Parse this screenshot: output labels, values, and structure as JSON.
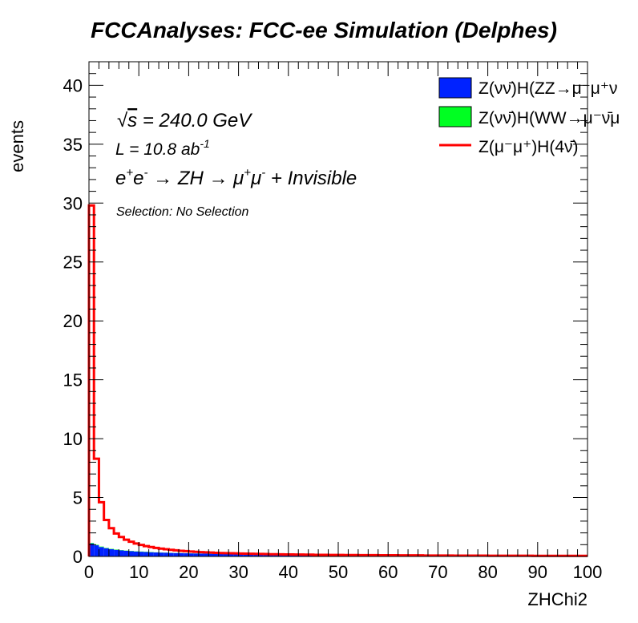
{
  "title": "FCCAnalyses: FCC-ee Simulation (Delphes)",
  "annotations": {
    "energy": {
      "sqrt": "√",
      "s": "s",
      "rest": " = 240.0 GeV"
    },
    "lumi": {
      "main": "L = 10.8 ab",
      "sup": "-1"
    },
    "process": {
      "e": "e",
      "ep": "+",
      "e2": "e",
      "em": "-",
      "arrow1": " → ZH → μ",
      "mup": "+",
      "mu2": "μ",
      "mum": "-",
      "rest": " + Invisible"
    },
    "selection": "Selection: No Selection"
  },
  "chart_data": {
    "type": "histogram",
    "title": "FCCAnalyses: FCC-ee Simulation (Delphes)",
    "xlabel": "ZHChi2",
    "ylabel": "events",
    "xlim": [
      0,
      100
    ],
    "ylim": [
      0,
      42
    ],
    "bin_width": 1,
    "xticks": [
      "0",
      "10",
      "20",
      "30",
      "40",
      "50",
      "60",
      "70",
      "80",
      "90",
      "100"
    ],
    "yticks": [
      "0",
      "5",
      "10",
      "15",
      "20",
      "25",
      "30",
      "35",
      "40"
    ],
    "legend": {
      "position": "top-right",
      "entries": [
        {
          "label": "Z(νν̄)H(ZZ→μ⁻μ⁺ν",
          "style": "fill",
          "color": "#0022ff"
        },
        {
          "label": "Z(νν̄)H(WW→μ⁻ν̄μ",
          "style": "fill",
          "color": "#00ff22"
        },
        {
          "label": "Z(μ⁻μ⁺)H(4ν̄)",
          "style": "line",
          "color": "#ff0000"
        }
      ]
    },
    "series": [
      {
        "name": "Z(νν̄)H(ZZ→μ⁻μ⁺ν",
        "style": "stacked-fill",
        "color": "#0022ff",
        "values": [
          1.1,
          0.95,
          0.8,
          0.7,
          0.62,
          0.56,
          0.52,
          0.48,
          0.45,
          0.42,
          0.4,
          0.38,
          0.36,
          0.34,
          0.33,
          0.32,
          0.3,
          0.29,
          0.28,
          0.27,
          0.26,
          0.25,
          0.24,
          0.24,
          0.23,
          0.22,
          0.22,
          0.21,
          0.21,
          0.2,
          0.2,
          0.19,
          0.19,
          0.18,
          0.18,
          0.17,
          0.17,
          0.16,
          0.16,
          0.16,
          0.15,
          0.15,
          0.15,
          0.15,
          0.14,
          0.14,
          0.14,
          0.14,
          0.13,
          0.13,
          0.13,
          0.13,
          0.13,
          0.12,
          0.12,
          0.12,
          0.12,
          0.12,
          0.12,
          0.11,
          0.11,
          0.11,
          0.11,
          0.11,
          0.11,
          0.1,
          0.1,
          0.1,
          0.1,
          0.1,
          0.1,
          0.1,
          0.1,
          0.09,
          0.09,
          0.09,
          0.09,
          0.09,
          0.09,
          0.09,
          0.09,
          0.09,
          0.09,
          0.08,
          0.08,
          0.08,
          0.08,
          0.08,
          0.08,
          0.08,
          0.08,
          0.08,
          0.08,
          0.08,
          0.08,
          0.08,
          0.07,
          0.07,
          0.07,
          0.07
        ]
      },
      {
        "name": "Z(νν̄)H(WW→μ⁻ν̄μ",
        "style": "stacked-fill",
        "color": "#00ff22",
        "values": [
          0.05,
          0.04,
          0.04,
          0.03,
          0.03,
          0.03,
          0.02,
          0.02,
          0.02,
          0.02,
          0.02,
          0.02,
          0.02,
          0.01,
          0.01,
          0.01,
          0.01,
          0.01,
          0.01,
          0.01,
          0.01,
          0.01,
          0.01,
          0.01,
          0.01,
          0.01,
          0.01,
          0.01,
          0.01,
          0.01,
          0.01,
          0.01,
          0.01,
          0.01,
          0.01,
          0.01,
          0.01,
          0.01,
          0.01,
          0.01,
          0.01,
          0.01,
          0.01,
          0.01,
          0.01,
          0.01,
          0.01,
          0.01,
          0.01,
          0.01,
          0.01,
          0.01,
          0.01,
          0.01,
          0.01,
          0.01,
          0.01,
          0.01,
          0.01,
          0.01,
          0.01,
          0.01,
          0.01,
          0.01,
          0.01,
          0.01,
          0.01,
          0.01,
          0.01,
          0.01,
          0.01,
          0.01,
          0.01,
          0.01,
          0.01,
          0.01,
          0.01,
          0.01,
          0.01,
          0.01,
          0.01,
          0.01,
          0.01,
          0.01,
          0.01,
          0.01,
          0.01,
          0.01,
          0.01,
          0.01,
          0.01,
          0.01,
          0.01,
          0.01,
          0.01,
          0.01,
          0.01,
          0.01,
          0.01,
          0.01
        ]
      },
      {
        "name": "Z(μ⁻μ⁺)H(4ν̄)",
        "style": "step-line",
        "color": "#ff0000",
        "values": [
          29.8,
          8.3,
          4.6,
          3.1,
          2.4,
          1.95,
          1.65,
          1.42,
          1.25,
          1.1,
          0.98,
          0.88,
          0.8,
          0.72,
          0.66,
          0.61,
          0.56,
          0.52,
          0.48,
          0.45,
          0.42,
          0.39,
          0.37,
          0.35,
          0.33,
          0.31,
          0.29,
          0.28,
          0.27,
          0.26,
          0.25,
          0.24,
          0.23,
          0.22,
          0.21,
          0.2,
          0.19,
          0.19,
          0.18,
          0.17,
          0.17,
          0.16,
          0.16,
          0.15,
          0.15,
          0.14,
          0.14,
          0.14,
          0.13,
          0.13,
          0.13,
          0.12,
          0.12,
          0.12,
          0.11,
          0.11,
          0.11,
          0.11,
          0.1,
          0.1,
          0.1,
          0.1,
          0.09,
          0.09,
          0.09,
          0.09,
          0.09,
          0.08,
          0.08,
          0.08,
          0.08,
          0.08,
          0.08,
          0.07,
          0.07,
          0.07,
          0.07,
          0.07,
          0.07,
          0.07,
          0.06,
          0.06,
          0.06,
          0.06,
          0.06,
          0.06,
          0.06,
          0.06,
          0.06,
          0.05,
          0.05,
          0.05,
          0.05,
          0.05,
          0.05,
          0.05,
          0.05,
          0.05,
          0.05,
          0.05
        ]
      }
    ]
  }
}
